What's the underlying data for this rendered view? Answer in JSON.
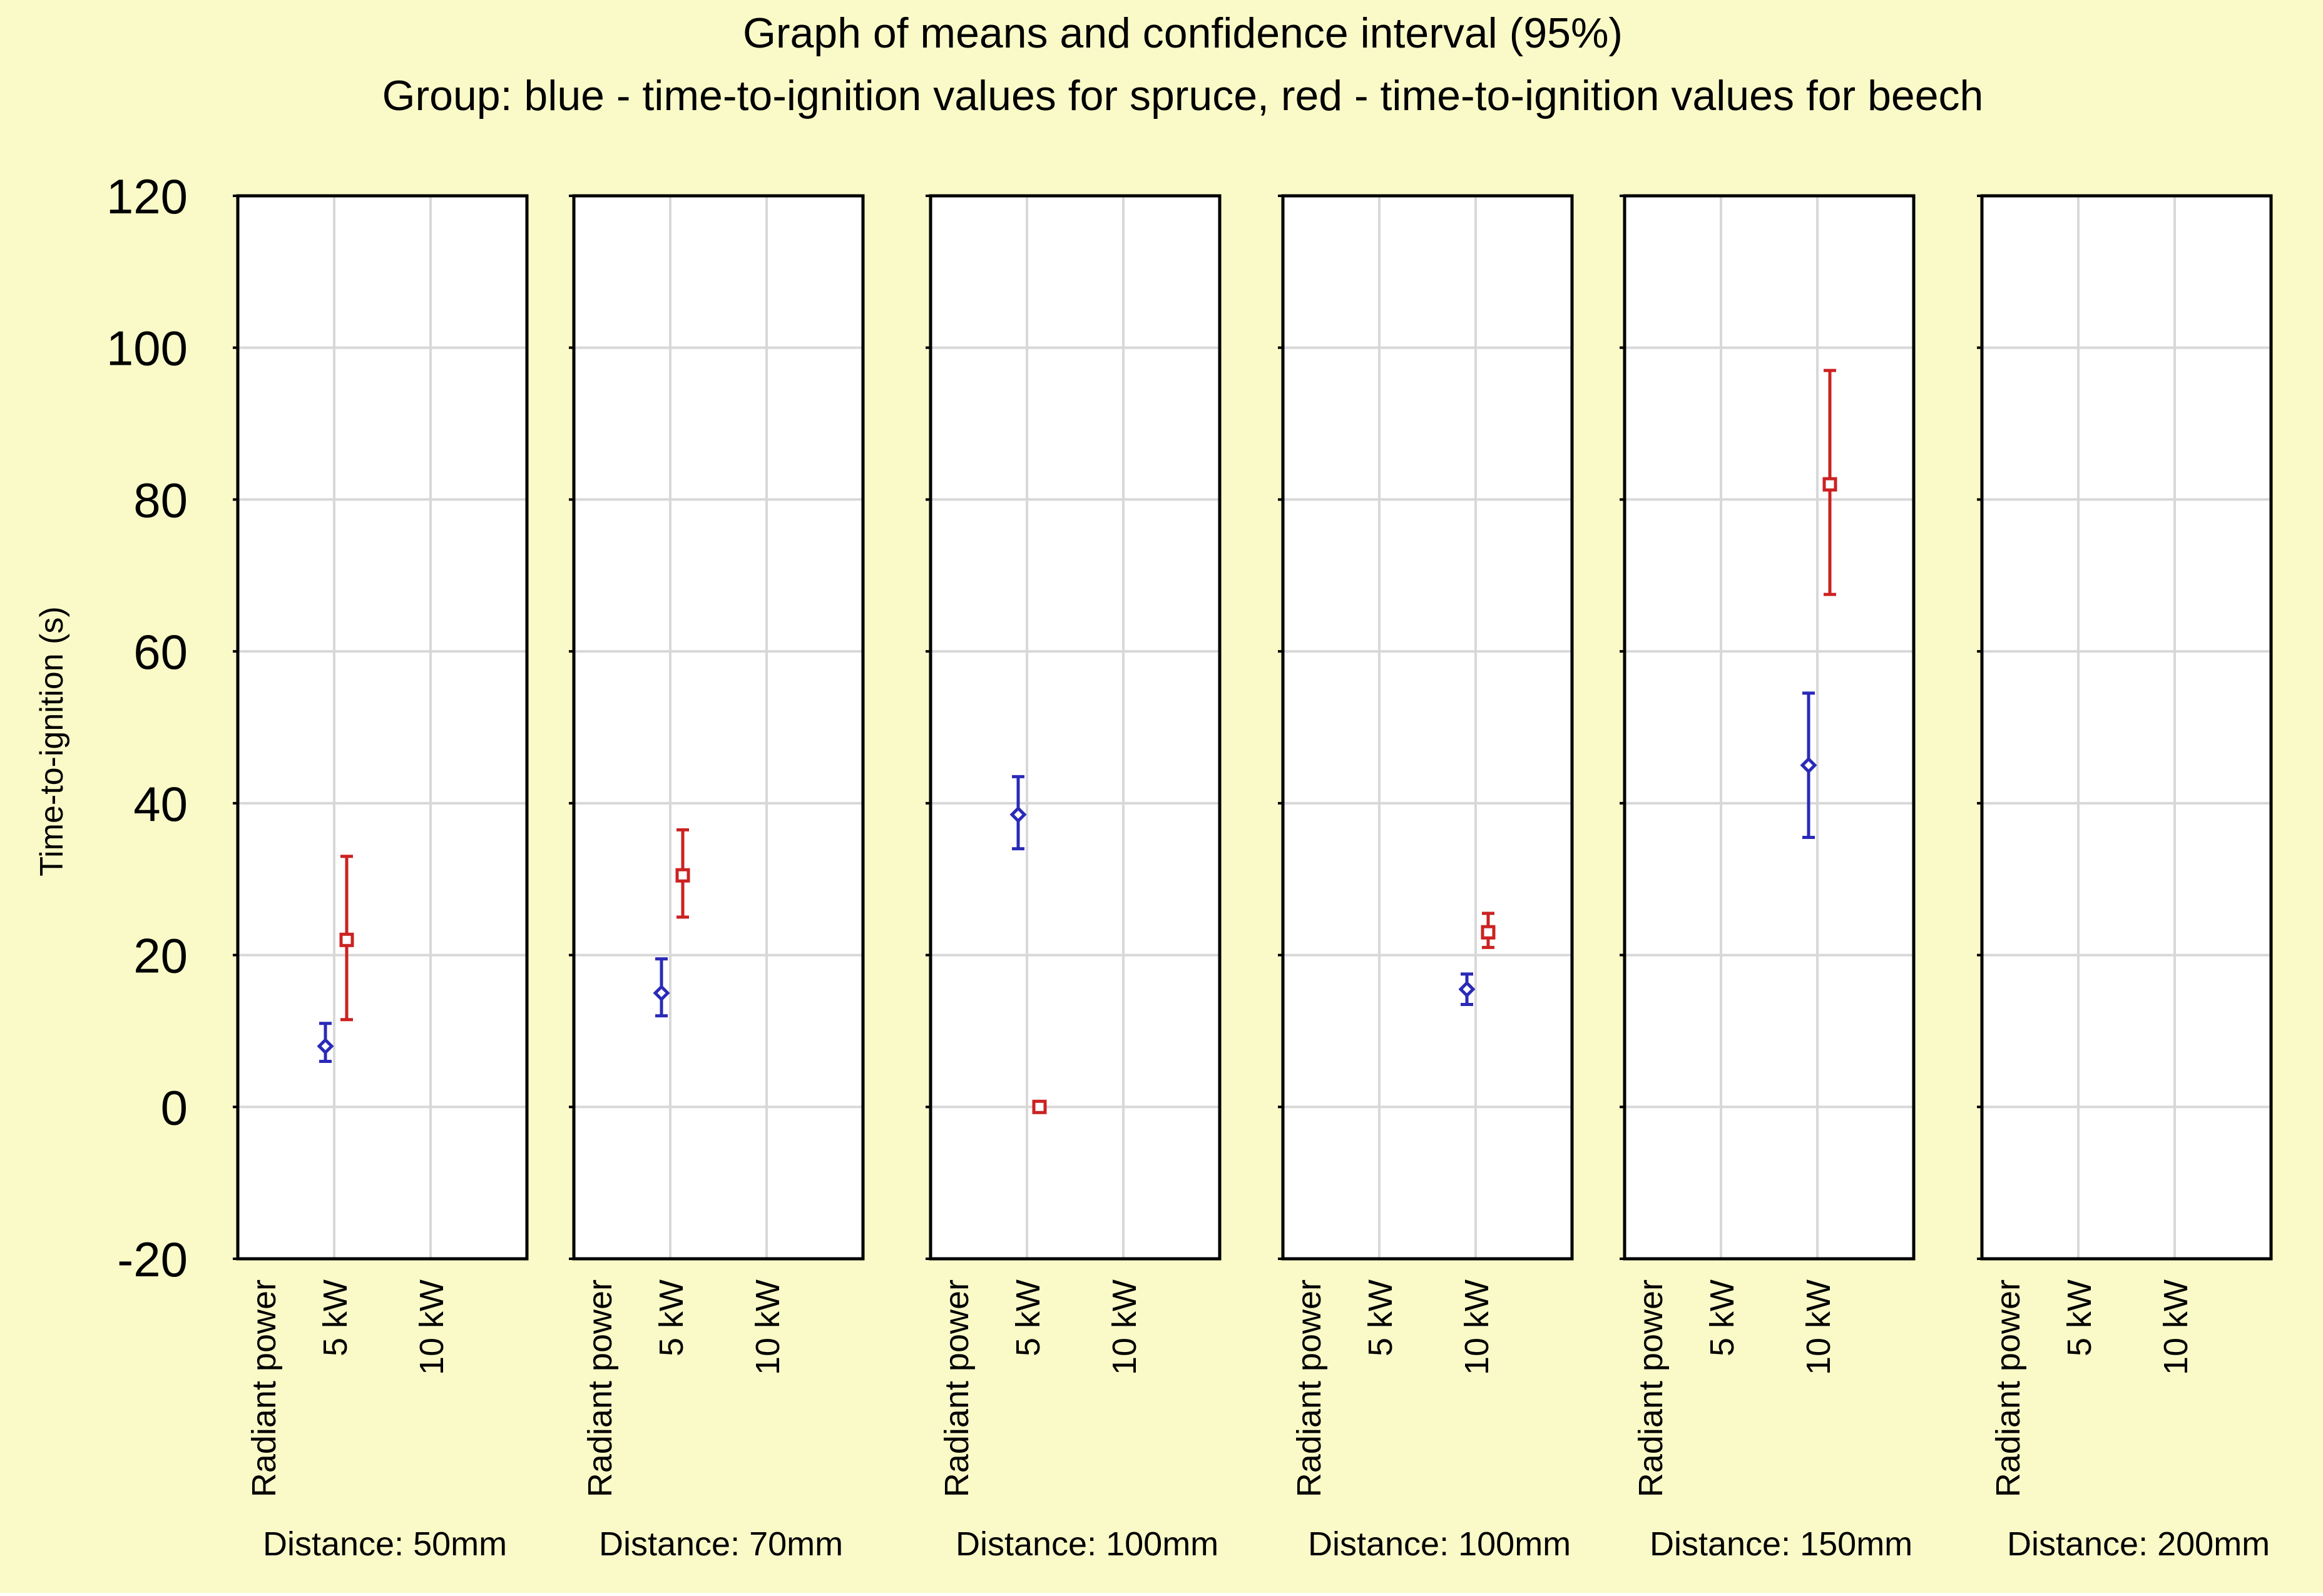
{
  "chart_data": {
    "type": "scatter",
    "title": "Graph of means and confidence interval (95%)",
    "subtitle": "Group: blue - time-to-ignition values for spruce, red - time-to-ignition values for beech",
    "ylabel": "Time-to-ignition (s)",
    "ylim": [
      -20,
      120
    ],
    "yticks": [
      "120",
      "100",
      "80",
      "60",
      "40",
      "20",
      "0",
      "-20"
    ],
    "colors": {
      "background": "#fafac8",
      "spruce": "#2a2ab8",
      "beech": "#cc2222",
      "grid": "#d8d8d8"
    },
    "panels": [
      {
        "label": "Distance: 50mm",
        "x_title": "Radiant power",
        "x_ticks": [
          "5 kW",
          "10 kW"
        ],
        "series": [
          {
            "name": "spruce",
            "category": "5 kW",
            "mean": 8,
            "lower": 6,
            "upper": 11
          },
          {
            "name": "beech",
            "category": "5 kW",
            "mean": 22,
            "lower": 11.5,
            "upper": 33
          }
        ]
      },
      {
        "label": "Distance: 70mm",
        "x_title": "Radiant power",
        "x_ticks": [
          "5 kW",
          "10 kW"
        ],
        "series": [
          {
            "name": "spruce",
            "category": "5 kW",
            "mean": 15,
            "lower": 12,
            "upper": 19.5
          },
          {
            "name": "beech",
            "category": "5 kW",
            "mean": 30.5,
            "lower": 25,
            "upper": 36.5
          }
        ]
      },
      {
        "label": "Distance: 100mm",
        "x_title": "Radiant power",
        "x_ticks": [
          "5 kW",
          "10 kW"
        ],
        "series": [
          {
            "name": "spruce",
            "category": "5 kW",
            "mean": 38.5,
            "lower": 34,
            "upper": 43.5
          },
          {
            "name": "beech",
            "category": "5 kW",
            "mean": 0,
            "lower": 0,
            "upper": 0
          }
        ]
      },
      {
        "label": "Distance: 100mm",
        "x_title": "Radiant power",
        "x_ticks": [
          "5 kW",
          "10 kW"
        ],
        "series": [
          {
            "name": "spruce",
            "category": "10 kW",
            "mean": 15.5,
            "lower": 13.5,
            "upper": 17.5
          },
          {
            "name": "beech",
            "category": "10 kW",
            "mean": 23,
            "lower": 21,
            "upper": 25.5
          }
        ]
      },
      {
        "label": "Distance: 150mm",
        "x_title": "Radiant power",
        "x_ticks": [
          "5 kW",
          "10 kW"
        ],
        "series": [
          {
            "name": "spruce",
            "category": "10 kW",
            "mean": 45,
            "lower": 35.5,
            "upper": 54.5
          },
          {
            "name": "beech",
            "category": "10 kW",
            "mean": 82,
            "lower": 67.5,
            "upper": 97
          }
        ]
      },
      {
        "label": "Distance: 200mm",
        "x_title": "Radiant power",
        "x_ticks": [
          "5 kW",
          "10 kW"
        ],
        "series": []
      }
    ]
  }
}
